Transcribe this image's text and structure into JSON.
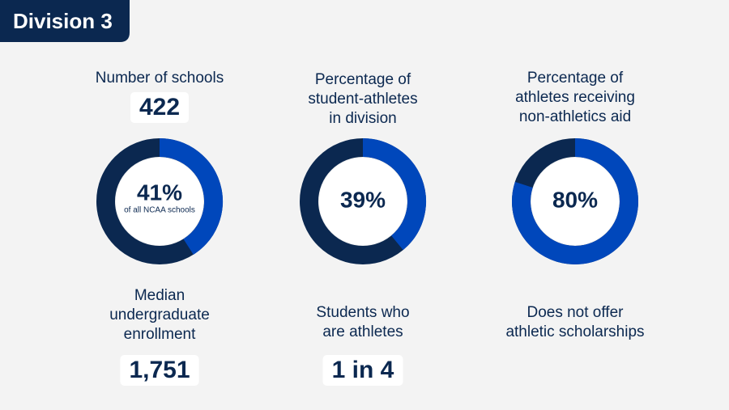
{
  "header": {
    "title": "Division 3"
  },
  "columns": [
    {
      "top_label": [
        "Number of schools"
      ],
      "top_value": "422",
      "donut": {
        "value": 41,
        "label": "41%",
        "caption": "of all NCAA schools"
      },
      "bottom_label": [
        "Median",
        "undergraduate",
        "enrollment"
      ],
      "bottom_value": "1,751"
    },
    {
      "top_label": [
        "Percentage of",
        "student-athletes",
        "in division"
      ],
      "donut": {
        "value": 39,
        "label": "39%"
      },
      "bottom_label": [
        "Students who",
        "are athletes"
      ],
      "bottom_value": "1 in 4"
    },
    {
      "top_label": [
        "Percentage of",
        "athletes receiving",
        "non-athletics aid"
      ],
      "donut": {
        "value": 80,
        "label": "80%"
      },
      "bottom_label": [
        "Does not offer",
        "athletic scholarships"
      ]
    }
  ]
}
